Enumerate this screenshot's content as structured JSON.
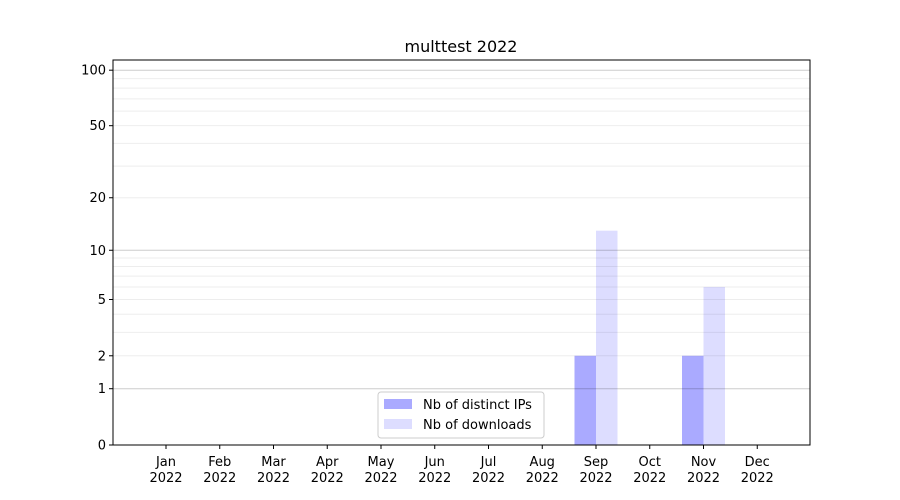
{
  "chart_data": {
    "type": "bar",
    "title": "multtest 2022",
    "xlabel": "",
    "ylabel": "",
    "yscale": "symlog (log10(1+y))",
    "ylim": [
      0,
      113
    ],
    "yticks": [
      0,
      1,
      2,
      5,
      10,
      20,
      50,
      100
    ],
    "grid": true,
    "legend_position": "lower-center",
    "categories": [
      "Jan\n2022",
      "Feb\n2022",
      "Mar\n2022",
      "Apr\n2022",
      "May\n2022",
      "Jun\n2022",
      "Jul\n2022",
      "Aug\n2022",
      "Sep\n2022",
      "Oct\n2022",
      "Nov\n2022",
      "Dec\n2022"
    ],
    "series": [
      {
        "name": "Nb of distinct IPs",
        "color": "#aaaaff",
        "values": [
          0,
          0,
          0,
          0,
          0,
          0,
          0,
          0,
          2,
          0,
          2,
          0
        ]
      },
      {
        "name": "Nb of downloads",
        "color": "#ddddff",
        "values": [
          0,
          0,
          0,
          0,
          0,
          0,
          0,
          0,
          13,
          0,
          6,
          0
        ]
      }
    ]
  }
}
